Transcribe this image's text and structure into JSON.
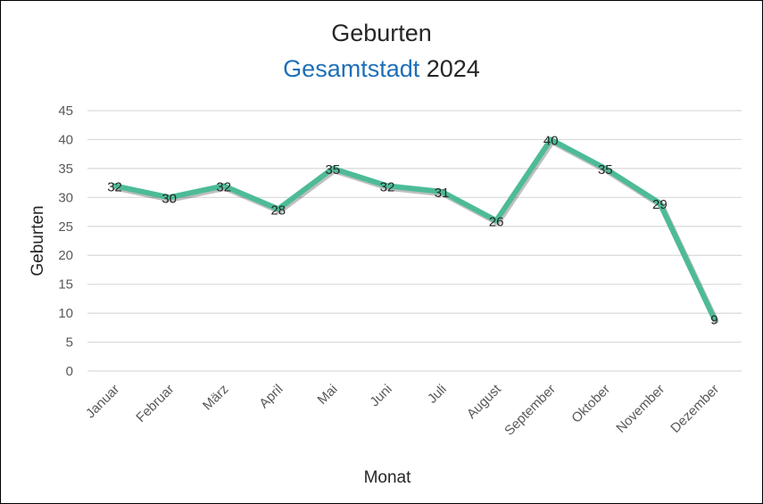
{
  "chart_data": {
    "type": "line",
    "title": "Geburten",
    "subtitle_prefix": "Gesamtstadt",
    "subtitle_year": "2024",
    "xlabel": "Monat",
    "ylabel": "Geburten",
    "categories": [
      "Januar",
      "Februar",
      "März",
      "April",
      "Mai",
      "Juni",
      "Juli",
      "August",
      "September",
      "Oktober",
      "November",
      "Dezember"
    ],
    "series": [
      {
        "values": [
          32,
          30,
          32,
          28,
          35,
          32,
          31,
          26,
          40,
          35,
          29,
          9
        ]
      }
    ],
    "ylim": [
      0,
      45
    ],
    "yticks": [
      0,
      5,
      10,
      15,
      20,
      25,
      30,
      35,
      40,
      45
    ],
    "grid": true,
    "data_labels": true,
    "line_color": "#4dbb98",
    "accent_color": "#1f6fb8"
  }
}
